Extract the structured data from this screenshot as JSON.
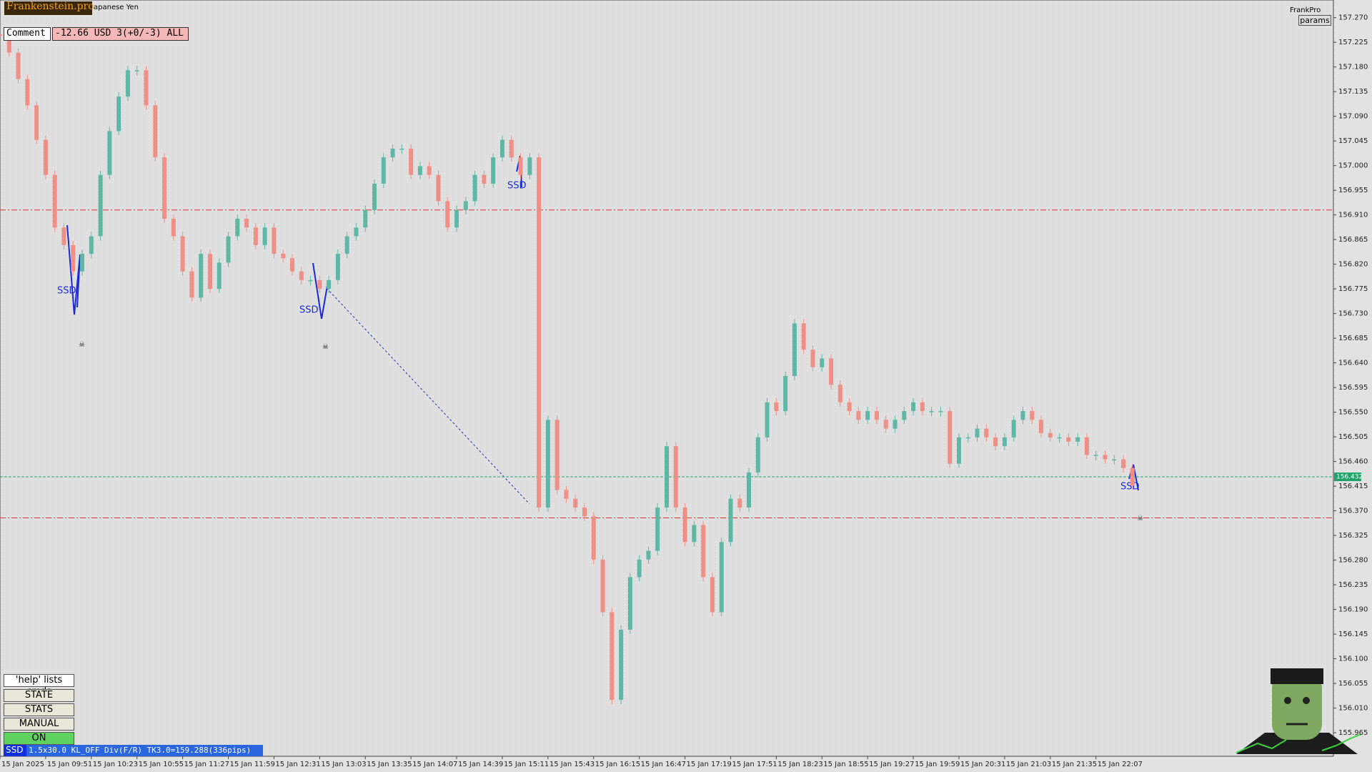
{
  "chart_data": {
    "type": "candles",
    "series": [
      {
        "up_color": "#5fb8a6",
        "down_color": "#ef8f86",
        "values": [
          157.238,
          157.206,
          157.158,
          157.11,
          157.047,
          156.983,
          156.887,
          156.855,
          156.807,
          156.839,
          156.871,
          156.983,
          157.063,
          157.126,
          157.174,
          157.174,
          157.11,
          157.015,
          156.903,
          156.871,
          156.807,
          156.759,
          156.839,
          156.775,
          156.823,
          156.871,
          156.903,
          156.887,
          156.855,
          156.887,
          156.839,
          156.831,
          156.807,
          156.791,
          156.791,
          156.775,
          156.791,
          156.839,
          156.871,
          156.887,
          156.919,
          156.967,
          157.015,
          157.031,
          157.031,
          156.983,
          156.999,
          156.983,
          156.935,
          156.887,
          156.919,
          156.935,
          156.983,
          156.967,
          157.015,
          157.047,
          157.015,
          156.983,
          157.015,
          156.376,
          156.536,
          156.408,
          156.392,
          156.376,
          156.36,
          156.281,
          156.185,
          156.025,
          156.153,
          156.249,
          156.281,
          156.297,
          156.376,
          156.488,
          156.376,
          156.313,
          156.344,
          156.249,
          156.185,
          156.313,
          156.392,
          156.376,
          156.44,
          156.504,
          156.568,
          156.552,
          156.616,
          156.712,
          156.664,
          156.632,
          156.648,
          156.6,
          156.568,
          156.552,
          156.536,
          156.552,
          156.536,
          156.52,
          156.536,
          156.552,
          156.568,
          156.552,
          156.552,
          156.552,
          156.456,
          156.504,
          156.504,
          156.52,
          156.504,
          156.488,
          156.504,
          156.536,
          156.552,
          156.536,
          156.512,
          156.504,
          156.504,
          156.496,
          156.504,
          156.472,
          156.472,
          156.464,
          156.464,
          156.448,
          156.416
        ]
      }
    ],
    "xlim": [
      0,
      146
    ],
    "xticks": [
      {
        "value": 0,
        "label": "15 Jan 2025"
      },
      {
        "value": 5,
        "label": "15 Jan 09:51"
      },
      {
        "value": 10,
        "label": "15 Jan 10:23"
      },
      {
        "value": 15,
        "label": "15 Jan 10:55"
      },
      {
        "value": 20,
        "label": "15 Jan 11:27"
      },
      {
        "value": 25,
        "label": "15 Jan 11:59"
      },
      {
        "value": 30,
        "label": "15 Jan 12:31"
      },
      {
        "value": 35,
        "label": "15 Jan 13:03"
      },
      {
        "value": 40,
        "label": "15 Jan 13:35"
      },
      {
        "value": 45,
        "label": "15 Jan 14:07"
      },
      {
        "value": 50,
        "label": "15 Jan 14:39"
      },
      {
        "value": 55,
        "label": "15 Jan 15:11"
      },
      {
        "value": 60,
        "label": "15 Jan 15:43"
      },
      {
        "value": 65,
        "label": "15 Jan 16:15"
      },
      {
        "value": 70,
        "label": "15 Jan 16:47"
      },
      {
        "value": 75,
        "label": "15 Jan 17:19"
      },
      {
        "value": 80,
        "label": "15 Jan 17:51"
      },
      {
        "value": 85,
        "label": "15 Jan 18:23"
      },
      {
        "value": 90,
        "label": "15 Jan 18:55"
      },
      {
        "value": 95,
        "label": "15 Jan 19:27"
      },
      {
        "value": 100,
        "label": "15 Jan 19:59"
      },
      {
        "value": 105,
        "label": "15 Jan 20:31"
      },
      {
        "value": 110,
        "label": "15 Jan 21:03"
      },
      {
        "value": 115,
        "label": "15 Jan 21:35"
      },
      {
        "value": 120,
        "label": "15 Jan 22:07"
      }
    ],
    "ylim": [
      155.922,
      157.297
    ],
    "yticks": [
      {
        "value": 157.27,
        "label": "157.270"
      },
      157.225,
      {
        "value": 157.18,
        "label": "157.180"
      },
      157.135,
      {
        "value": 157.09,
        "label": "157.090"
      },
      157.045,
      {
        "value": 157,
        "label": "157.000"
      },
      156.955,
      {
        "value": 156.91,
        "label": "156.910"
      },
      156.865,
      {
        "value": 156.82,
        "label": "156.820"
      },
      156.775,
      {
        "value": 156.73,
        "label": "156.730"
      },
      156.685,
      {
        "value": 156.64,
        "label": "156.640"
      },
      156.595,
      {
        "value": 156.55,
        "label": "156.550"
      },
      156.505,
      {
        "value": 156.46,
        "label": "156.460"
      },
      156.415,
      {
        "value": 156.37,
        "label": "156.370"
      },
      156.325,
      {
        "value": 156.28,
        "label": "156.280"
      },
      156.235,
      {
        "value": 156.19,
        "label": "156.190"
      },
      156.145,
      {
        "value": 156.1,
        "label": "156.100"
      },
      156.055,
      {
        "value": 156.01,
        "label": "156.010"
      },
      155.965
    ],
    "levels": [
      156.919,
      156.357
    ],
    "level_color": "#e0342c",
    "current_price": 156.432,
    "current_color": "#1fa36a",
    "annotations": [
      "SSD",
      "SSD",
      "SSD",
      "SSD"
    ]
  },
  "ui": {
    "brand": "Frankenstein.pro",
    "symbol": "apanese Yen",
    "comment_button": "Comment",
    "comment_value": "-12.66 USD 3(+0/-3) ALL",
    "top_right": "FrankPro",
    "params": "params",
    "help": "'help' lists cmds",
    "buttons": [
      "STATE",
      "STATS",
      "MANUAL",
      "ON"
    ],
    "status_tag": "SSD",
    "status_text": "1.5x30.0 KL_OFF Div(F/R) TK3.0=159.288(336pips)"
  }
}
